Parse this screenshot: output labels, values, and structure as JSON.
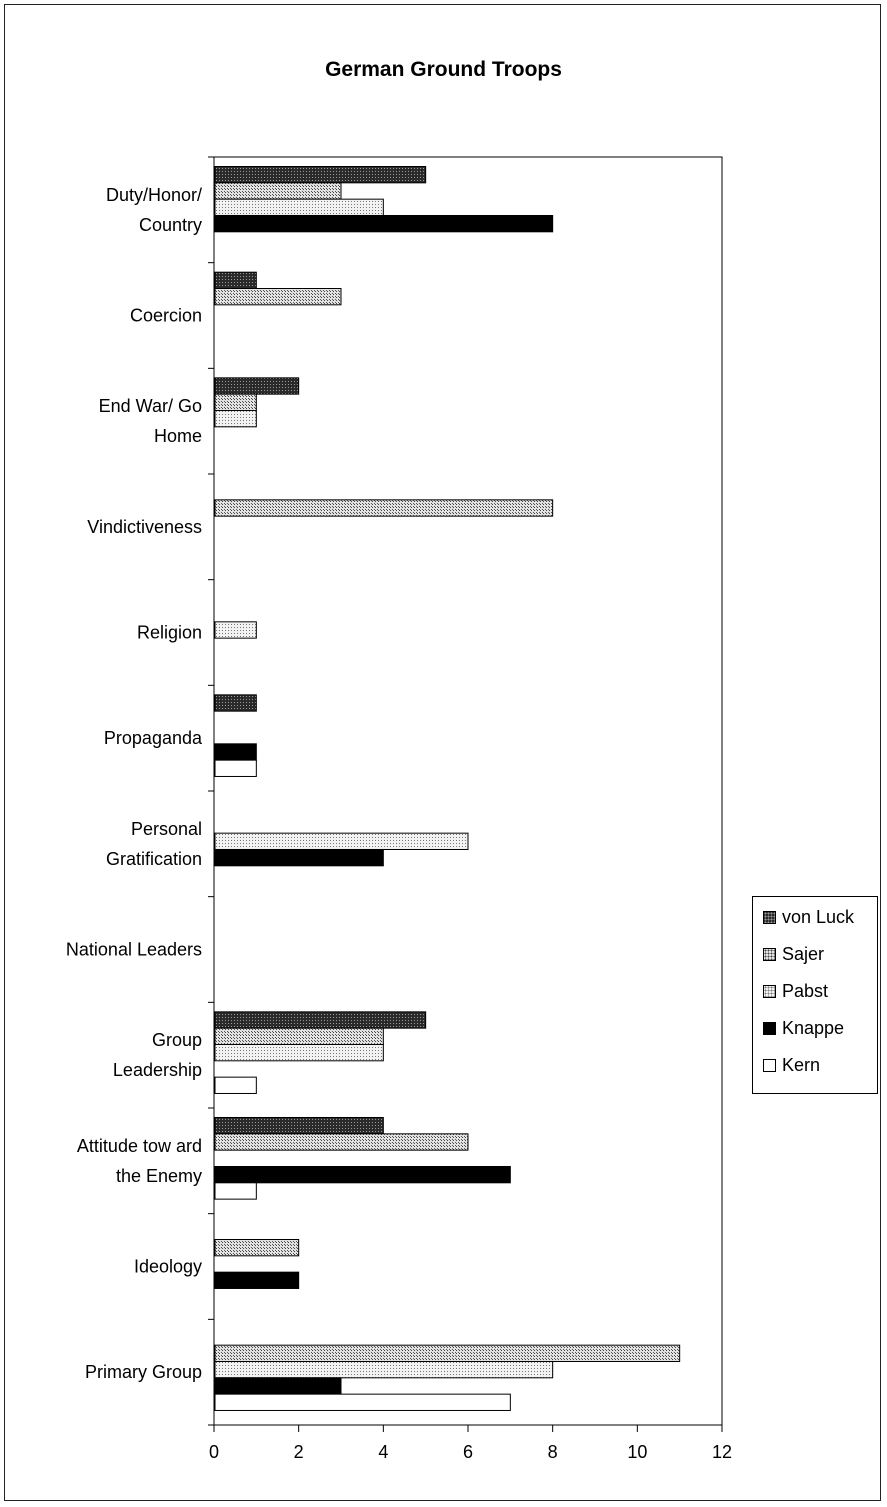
{
  "chart_data": {
    "type": "bar",
    "orientation": "horizontal",
    "title": "German Ground Troops",
    "xlabel": "",
    "ylabel": "",
    "xlim": [
      0,
      12
    ],
    "x_ticks": [
      0,
      2,
      4,
      6,
      8,
      10,
      12
    ],
    "grid": false,
    "legend_position": "right",
    "categories": [
      [
        "Duty/Honor/",
        "Country"
      ],
      [
        "Coercion"
      ],
      [
        "End War/ Go",
        "Home"
      ],
      [
        "Vindictiveness"
      ],
      [
        "Religion"
      ],
      [
        "Propaganda"
      ],
      [
        "Personal",
        "Gratification"
      ],
      [
        "National Leaders"
      ],
      [
        "Group",
        "Leadership"
      ],
      [
        "Attitude tow ard",
        "the Enemy"
      ],
      [
        "Ideology"
      ],
      [
        "Primary Group"
      ]
    ],
    "series": [
      {
        "name": "von Luck",
        "color": "#444444",
        "pattern": "dense",
        "values": [
          5,
          1,
          2,
          0,
          0,
          1,
          0,
          0,
          5,
          4,
          0,
          0
        ]
      },
      {
        "name": "Sajer",
        "color": "#9a9a9a",
        "pattern": "medium",
        "values": [
          3,
          3,
          1,
          8,
          0,
          0,
          0,
          0,
          4,
          6,
          2,
          11
        ]
      },
      {
        "name": "Pabst",
        "color": "#c8c8c8",
        "pattern": "light",
        "values": [
          4,
          0,
          1,
          0,
          1,
          0,
          6,
          0,
          4,
          0,
          0,
          8
        ]
      },
      {
        "name": "Knappe",
        "color": "#000000",
        "pattern": "solid",
        "values": [
          8,
          0,
          0,
          0,
          0,
          1,
          4,
          0,
          0,
          7,
          2,
          3
        ]
      },
      {
        "name": "Kern",
        "color": "#ffffff",
        "pattern": "none",
        "values": [
          0,
          0,
          0,
          0,
          0,
          1,
          0,
          0,
          1,
          1,
          0,
          7
        ]
      }
    ]
  }
}
